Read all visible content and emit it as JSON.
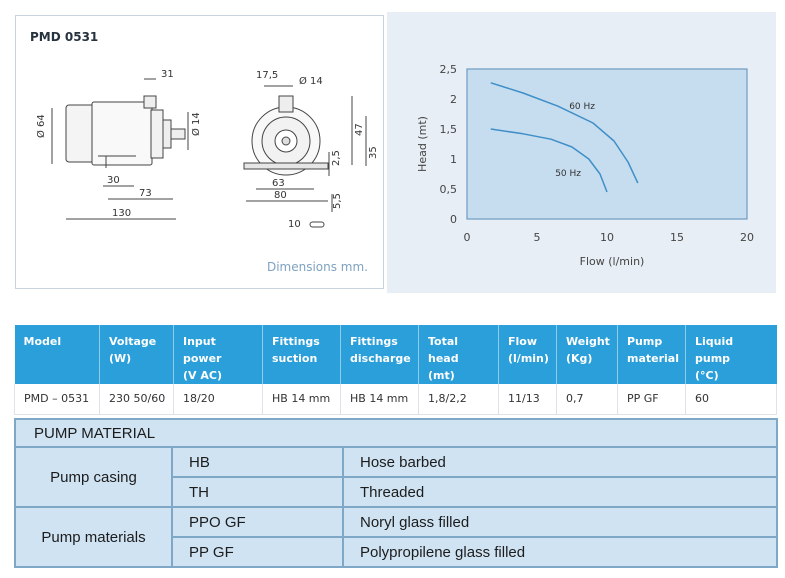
{
  "drawing": {
    "title": "PMD 0531",
    "note": "Dimensions mm.",
    "dims": {
      "d31": "31",
      "d64": "Ø 64",
      "d14a": "Ø 14",
      "d30": "30",
      "d73": "73",
      "d130": "130",
      "d17_5": "17,5",
      "d14b": "Ø 14",
      "d47": "47",
      "d35": "35",
      "d2_5": "2,5",
      "d63": "63",
      "d80": "80",
      "d5_5": "5,5",
      "d10": "10"
    }
  },
  "chart_data": {
    "type": "line",
    "xlabel": "Flow (l/min)",
    "ylabel": "Head (mt)",
    "xlim": [
      0,
      20
    ],
    "ylim": [
      0,
      2.5
    ],
    "x_ticks": [
      "0",
      "5",
      "10",
      "15",
      "20"
    ],
    "y_ticks": [
      "0",
      "0,5",
      "1",
      "1,5",
      "2",
      "2,5"
    ],
    "grid": false,
    "series": [
      {
        "name": "60 Hz",
        "x": [
          1.7,
          4,
          6.5,
          9,
          10.5,
          11.5,
          12.2
        ],
        "y": [
          2.27,
          2.1,
          1.88,
          1.6,
          1.3,
          0.95,
          0.6
        ]
      },
      {
        "name": "50 Hz",
        "x": [
          1.7,
          4,
          6,
          7.5,
          8.7,
          9.5,
          10
        ],
        "y": [
          1.5,
          1.42,
          1.33,
          1.2,
          1.0,
          0.75,
          0.45
        ]
      }
    ],
    "annotations": [
      "60 Hz",
      "50 Hz"
    ]
  },
  "specs": {
    "headers": [
      [
        "Model",
        ""
      ],
      [
        "Voltage",
        "(W)"
      ],
      [
        "Input power",
        "(V AC)"
      ],
      [
        "Fittings",
        "suction"
      ],
      [
        "Fittings",
        "discharge"
      ],
      [
        "Total head",
        "(mt)"
      ],
      [
        "Flow",
        "(l/min)"
      ],
      [
        "Weight",
        "(Kg)"
      ],
      [
        "Pump",
        "material"
      ],
      [
        "Liquid pump",
        "(°C)"
      ]
    ],
    "row": [
      "PMD – 0531",
      "230 50/60",
      "18/20",
      "HB 14 mm",
      "HB 14 mm",
      "1,8/2,2",
      "11/13",
      "0,7",
      "PP GF",
      "60"
    ]
  },
  "material": {
    "title": "PUMP MATERIAL",
    "casing_label": "Pump casing",
    "casing": [
      {
        "code": "HB",
        "desc": "Hose barbed"
      },
      {
        "code": "TH",
        "desc": "Threaded"
      }
    ],
    "materials_label": "Pump materials",
    "materials": [
      {
        "code": "PPO GF",
        "desc": "Noryl glass filled"
      },
      {
        "code": "PP GF",
        "desc": "Polypropilene glass filled"
      }
    ]
  }
}
